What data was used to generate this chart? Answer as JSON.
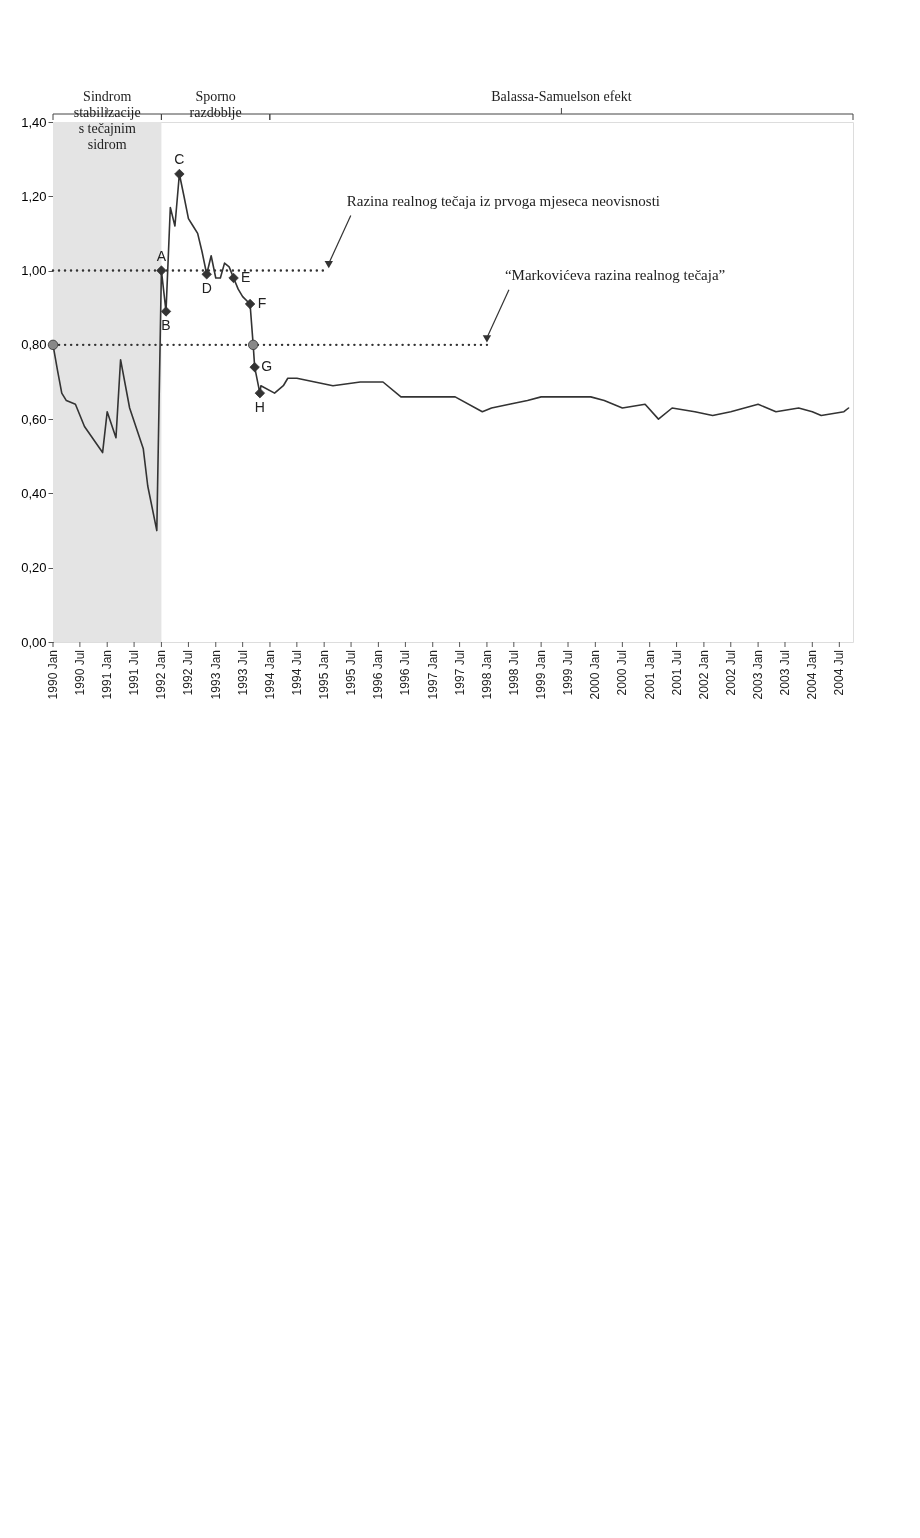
{
  "chart_data": {
    "type": "line",
    "xlim": [
      "1990-01",
      "2004-10"
    ],
    "ylim": [
      0,
      1.4
    ],
    "yticks": [
      {
        "value": 0,
        "label": "0,00"
      },
      {
        "value": 0.2,
        "label": "0,20"
      },
      {
        "value": 0.4,
        "label": "0,40"
      },
      {
        "value": 0.6,
        "label": "0,60"
      },
      {
        "value": 0.8,
        "label": "0,80"
      },
      {
        "value": 1.0,
        "label": "1,00"
      },
      {
        "value": 1.2,
        "label": "1,20"
      },
      {
        "value": 1.4,
        "label": "1,40"
      }
    ],
    "xticks": [
      {
        "value": "1990-01",
        "label": "1990 Jan"
      },
      {
        "value": "1990-07",
        "label": "1990 Jul"
      },
      {
        "value": "1991-01",
        "label": "1991 Jan"
      },
      {
        "value": "1991-07",
        "label": "1991 Jul"
      },
      {
        "value": "1992-01",
        "label": "1992 Jan"
      },
      {
        "value": "1992-07",
        "label": "1992 Jul"
      },
      {
        "value": "1993-01",
        "label": "1993 Jan"
      },
      {
        "value": "1993-07",
        "label": "1993 Jul"
      },
      {
        "value": "1994-01",
        "label": "1994 Jan"
      },
      {
        "value": "1994-07",
        "label": "1994 Jul"
      },
      {
        "value": "1995-01",
        "label": "1995 Jan"
      },
      {
        "value": "1995-07",
        "label": "1995 Jul"
      },
      {
        "value": "1996-01",
        "label": "1996 Jan"
      },
      {
        "value": "1996-07",
        "label": "1996 Jul"
      },
      {
        "value": "1997-01",
        "label": "1997 Jan"
      },
      {
        "value": "1997-07",
        "label": "1997 Jul"
      },
      {
        "value": "1998-01",
        "label": "1998 Jan"
      },
      {
        "value": "1998-07",
        "label": "1998 Jul"
      },
      {
        "value": "1999-01",
        "label": "1999 Jan"
      },
      {
        "value": "1999-07",
        "label": "1999 Jul"
      },
      {
        "value": "2000-01",
        "label": "2000 Jan"
      },
      {
        "value": "2000-07",
        "label": "2000 Jul"
      },
      {
        "value": "2001-01",
        "label": "2001 Jan"
      },
      {
        "value": "2001-07",
        "label": "2001 Jul"
      },
      {
        "value": "2002-01",
        "label": "2002 Jan"
      },
      {
        "value": "2002-07",
        "label": "2002 Jul"
      },
      {
        "value": "2003-01",
        "label": "2003 Jan"
      },
      {
        "value": "2003-07",
        "label": "2003 Jul"
      },
      {
        "value": "2004-01",
        "label": "2004 Jan"
      },
      {
        "value": "2004-07",
        "label": "2004 Jul"
      }
    ],
    "grid": false,
    "bands": [
      {
        "axis": "x",
        "from": "1990-01",
        "to": "1992-01",
        "label": "Sindrom stabilizacije s tečajnim sidrom",
        "color": "#e4e4e4"
      }
    ],
    "series": [
      {
        "color": "#333333",
        "x": [
          "1990-01",
          "1990-02",
          "1990-03",
          "1990-04",
          "1990-06",
          "1990-08",
          "1990-12",
          "1991-01",
          "1991-03",
          "1991-04",
          "1991-06",
          "1991-09",
          "1991-10",
          "1991-12",
          "1992-01",
          "1992-02",
          "1992-03",
          "1992-04",
          "1992-05",
          "1992-06",
          "1992-07",
          "1992-08",
          "1992-09",
          "1992-10",
          "1992-11",
          "1992-12",
          "1993-01",
          "1993-02",
          "1993-03",
          "1993-04",
          "1993-05",
          "1993-06",
          "1993-07",
          "1993-08-20",
          "1993-09-10",
          "1993-09-20",
          "1993-10-25",
          "1993-11",
          "1994-02",
          "1994-04",
          "1994-05",
          "1994-07",
          "1995-03",
          "1995-09",
          "1996-02",
          "1996-06",
          "1996-12",
          "1997-06",
          "1997-12",
          "1998-02",
          "1998-06",
          "1998-10",
          "1999-01",
          "1999-12",
          "2000-03",
          "2000-07",
          "2000-12",
          "2001-03",
          "2001-06",
          "2001-11",
          "2002-03",
          "2002-07",
          "2003-01",
          "2003-05",
          "2003-10",
          "2004-01",
          "2004-03",
          "2004-08",
          "2004-09"
        ],
        "values": [
          0.8,
          0.73,
          0.67,
          0.65,
          0.64,
          0.58,
          0.51,
          0.62,
          0.55,
          0.76,
          0.63,
          0.52,
          0.42,
          0.3,
          1.0,
          0.89,
          1.17,
          1.12,
          1.26,
          1.2,
          1.14,
          1.12,
          1.1,
          1.05,
          0.99,
          1.04,
          0.98,
          0.98,
          1.02,
          1.01,
          0.98,
          0.95,
          0.93,
          0.91,
          0.8,
          0.74,
          0.67,
          0.69,
          0.67,
          0.69,
          0.71,
          0.71,
          0.69,
          0.7,
          0.7,
          0.66,
          0.66,
          0.66,
          0.62,
          0.63,
          0.64,
          0.65,
          0.66,
          0.66,
          0.65,
          0.63,
          0.64,
          0.6,
          0.63,
          0.62,
          0.61,
          0.62,
          0.64,
          0.62,
          0.63,
          0.62,
          0.61,
          0.62,
          0.63
        ]
      },
      {
        "color": "#333333",
        "line_style": "dotted",
        "x": [
          "1990-01",
          "1995-02"
        ],
        "values": [
          1.0,
          1.0
        ]
      },
      {
        "color": "#333333",
        "line_style": "dotted",
        "x": [
          "1990-01",
          "1998-01"
        ],
        "values": [
          0.8,
          0.8
        ]
      },
      {
        "type": "scatter",
        "marker": "diamond",
        "color": "#333333",
        "x": [
          "1992-01",
          "1992-02",
          "1992-05",
          "1992-11",
          "1993-05",
          "1993-08-20",
          "1993-09-20",
          "1993-10-25"
        ],
        "values": [
          1.0,
          0.89,
          1.26,
          0.99,
          0.98,
          0.91,
          0.74,
          0.67
        ]
      },
      {
        "type": "scatter",
        "marker": "circle",
        "color": "#888888",
        "x": [
          "1990-01",
          "1993-09-10"
        ],
        "values": [
          0.8,
          0.8
        ]
      }
    ],
    "annotations": [
      "Sporno razdoblje",
      "Balassa-Samuelson efekt",
      {
        "text": "Razina realnog tečaja iz prvoga mjeseca neovisnosti",
        "x": "1995-02",
        "y": 1.0
      },
      {
        "text": "“Markovićeva razina realnog tečaja”",
        "x": "1998-01",
        "y": 0.8
      },
      {
        "text": "A",
        "x": "1992-01",
        "y": 1.0
      },
      {
        "text": "B",
        "x": "1992-02",
        "y": 0.89
      },
      {
        "text": "C",
        "x": "1992-05",
        "y": 1.26
      },
      {
        "text": "D",
        "x": "1992-11",
        "y": 0.99
      },
      {
        "text": "E",
        "x": "1993-05",
        "y": 0.98
      },
      {
        "text": "F",
        "x": "1993-08-20",
        "y": 0.91
      },
      {
        "text": "G",
        "x": "1993-09-20",
        "y": 0.74
      },
      {
        "text": "H",
        "x": "1993-10-25",
        "y": 0.67
      }
    ]
  }
}
